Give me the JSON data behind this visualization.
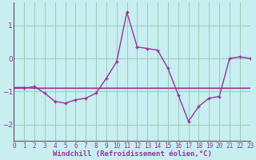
{
  "xlabel": "Windchill (Refroidissement éolien,°C)",
  "bg_color": "#c8eef0",
  "grid_color": "#99ccbb",
  "line_color": "#993399",
  "x": [
    0,
    1,
    2,
    3,
    4,
    5,
    6,
    7,
    8,
    9,
    10,
    11,
    12,
    13,
    14,
    15,
    16,
    17,
    18,
    19,
    20,
    21,
    22,
    23
  ],
  "y_main": [
    -0.9,
    -0.9,
    -0.85,
    -1.05,
    -1.3,
    -1.35,
    -1.25,
    -1.2,
    -1.05,
    -0.6,
    -0.1,
    1.4,
    0.35,
    0.3,
    0.25,
    -0.3,
    -1.1,
    -1.9,
    -1.45,
    -1.2,
    -1.15,
    0.0,
    0.05,
    0.0
  ],
  "y_trend": [
    -0.88,
    -0.88,
    -0.9,
    -0.9,
    -0.9,
    -0.9,
    -0.9,
    -0.9,
    -0.9,
    -0.9,
    -0.9,
    -0.9,
    -0.9,
    -0.9,
    -0.9,
    -0.9,
    -0.9,
    -0.9,
    -0.9,
    -0.9,
    -0.9,
    -0.9,
    -0.9,
    -0.9
  ],
  "ylim": [
    -2.5,
    1.7
  ],
  "xlim": [
    0,
    23
  ],
  "yticks": [
    -2,
    -1,
    0,
    1
  ],
  "xticks": [
    0,
    1,
    2,
    3,
    4,
    5,
    6,
    7,
    8,
    9,
    10,
    11,
    12,
    13,
    14,
    15,
    16,
    17,
    18,
    19,
    20,
    21,
    22,
    23
  ],
  "xlabel_color": "#993399",
  "tick_color": "#993399",
  "spine_color": "#555555"
}
